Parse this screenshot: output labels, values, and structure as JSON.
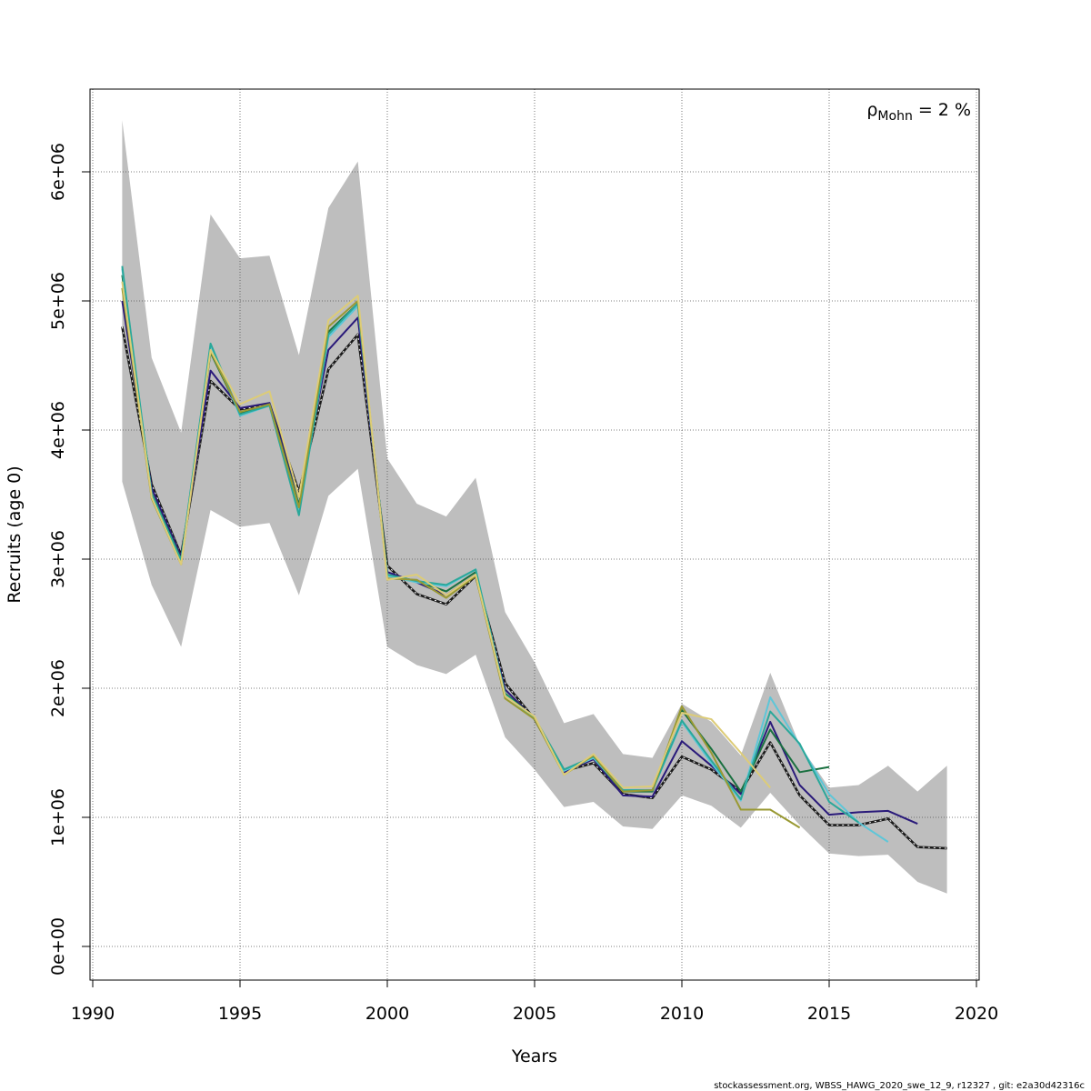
{
  "chart_data": {
    "type": "line",
    "xlabel": "Years",
    "ylabel": "Recruits (age 0)",
    "xlim": [
      1990,
      2020
    ],
    "ylim": [
      -250000,
      6650000
    ],
    "x_ticks": [
      1990,
      1995,
      2000,
      2005,
      2010,
      2015,
      2020
    ],
    "x_tick_labels": [
      "1990",
      "1995",
      "2000",
      "2005",
      "2010",
      "2015",
      "2020"
    ],
    "y_ticks": [
      0,
      1000000,
      2000000,
      3000000,
      4000000,
      5000000,
      6000000
    ],
    "y_tick_labels": [
      "0e+00",
      "1e+06",
      "2e+06",
      "3e+06",
      "4e+06",
      "5e+06",
      "6e+06"
    ],
    "grid": true,
    "annotation": {
      "rho": "ρ",
      "sub": "Mohn",
      "rest": " = 2 %"
    },
    "footer": "stockassessment.org, WBSS_HAWG_2020_swe_12_9, r12327 , git: e2a30d42316c",
    "band": {
      "color": "#bebebe",
      "x": [
        1991,
        1992,
        1993,
        1994,
        1995,
        1996,
        1997,
        1998,
        1999,
        2000,
        2001,
        2002,
        2003,
        2004,
        2005,
        2006,
        2007,
        2008,
        2009,
        2010,
        2011,
        2012,
        2013,
        2014,
        2015,
        2016,
        2017,
        2018,
        2019
      ],
      "lower": [
        3600000,
        2800000,
        2320000,
        3380000,
        3250000,
        3280000,
        2720000,
        3490000,
        3700000,
        2320000,
        2180000,
        2110000,
        2260000,
        1620000,
        1370000,
        1080000,
        1120000,
        930000,
        910000,
        1170000,
        1090000,
        920000,
        1190000,
        940000,
        720000,
        700000,
        710000,
        500000,
        410000
      ],
      "upper": [
        6400000,
        4560000,
        3980000,
        5670000,
        5330000,
        5350000,
        4580000,
        5720000,
        6080000,
        3780000,
        3430000,
        3330000,
        3630000,
        2590000,
        2200000,
        1730000,
        1800000,
        1490000,
        1460000,
        1880000,
        1740000,
        1480000,
        2120000,
        1560000,
        1230000,
        1250000,
        1400000,
        1200000,
        1400000
      ]
    },
    "series": [
      {
        "color": "#1a1a1a",
        "dashed": true,
        "x": [
          1991,
          1992,
          1993,
          1994,
          1995,
          1996,
          1997,
          1998,
          1999,
          2000,
          2001,
          2002,
          2003,
          2004,
          2005,
          2006,
          2007,
          2008,
          2009,
          2010,
          2011,
          2012,
          2013,
          2014,
          2015,
          2016,
          2017,
          2018,
          2019
        ],
        "y": [
          4800000,
          3580000,
          3030000,
          4380000,
          4160000,
          4200000,
          3520000,
          4470000,
          4740000,
          2950000,
          2730000,
          2650000,
          2870000,
          2040000,
          1760000,
          1360000,
          1420000,
          1180000,
          1150000,
          1470000,
          1370000,
          1200000,
          1580000,
          1170000,
          940000,
          940000,
          990000,
          770000,
          760000
        ]
      },
      {
        "color": "#2a1a7a",
        "dashed": false,
        "x": [
          1991,
          1992,
          1993,
          1994,
          1995,
          1996,
          1997,
          1998,
          1999,
          2000,
          2001,
          2002,
          2003,
          2004,
          2005,
          2006,
          2007,
          2008,
          2009,
          2010,
          2011,
          2012,
          2013,
          2014,
          2015,
          2016,
          2017,
          2018
        ],
        "y": [
          5000000,
          3550000,
          3020000,
          4460000,
          4170000,
          4210000,
          3480000,
          4620000,
          4870000,
          2900000,
          2820000,
          2720000,
          2880000,
          1990000,
          1760000,
          1350000,
          1450000,
          1170000,
          1160000,
          1590000,
          1400000,
          1180000,
          1740000,
          1250000,
          1020000,
          1040000,
          1050000,
          950000
        ]
      },
      {
        "color": "#1a7040",
        "dashed": false,
        "x": [
          1991,
          1992,
          1993,
          1994,
          1995,
          1996,
          1997,
          1998,
          1999,
          2000,
          2001,
          2002,
          2003,
          2004,
          2005,
          2006,
          2007,
          2008,
          2009,
          2010,
          2011,
          2012,
          2013,
          2014,
          2015
        ],
        "y": [
          5200000,
          3510000,
          3000000,
          4600000,
          4130000,
          4200000,
          3420000,
          4760000,
          4980000,
          2880000,
          2830000,
          2750000,
          2900000,
          1960000,
          1770000,
          1370000,
          1460000,
          1200000,
          1200000,
          1830000,
          1530000,
          1200000,
          1680000,
          1350000,
          1390000
        ]
      },
      {
        "color": "#5ec6d8",
        "dashed": false,
        "x": [
          1991,
          1992,
          1993,
          1994,
          1995,
          1996,
          1997,
          1998,
          1999,
          2000,
          2001,
          2002,
          2003,
          2004,
          2005,
          2006,
          2007,
          2008,
          2009,
          2010,
          2011,
          2012,
          2013,
          2014,
          2015,
          2016,
          2017
        ],
        "y": [
          5250000,
          3500000,
          2990000,
          4660000,
          4110000,
          4190000,
          3360000,
          4720000,
          4960000,
          2870000,
          2820000,
          2790000,
          2920000,
          1950000,
          1760000,
          1360000,
          1460000,
          1210000,
          1210000,
          1740000,
          1420000,
          1130000,
          1930000,
          1560000,
          1180000,
          960000,
          810000
        ]
      },
      {
        "color": "#2aa89a",
        "dashed": false,
        "x": [
          1991,
          1992,
          1993,
          1994,
          1995,
          1996,
          1997,
          1998,
          1999,
          2000,
          2001,
          2002,
          2003,
          2004,
          2005,
          2006,
          2007,
          2008,
          2009,
          2010,
          2011,
          2012,
          2013,
          2014,
          2015,
          2016
        ],
        "y": [
          5270000,
          3500000,
          2990000,
          4670000,
          4120000,
          4190000,
          3340000,
          4740000,
          4980000,
          2880000,
          2830000,
          2800000,
          2920000,
          1950000,
          1770000,
          1370000,
          1470000,
          1210000,
          1210000,
          1750000,
          1440000,
          1140000,
          1820000,
          1570000,
          1120000,
          960000
        ]
      },
      {
        "color": "#999933",
        "dashed": false,
        "x": [
          1991,
          1992,
          1993,
          1994,
          1995,
          1996,
          1997,
          1998,
          1999,
          2000,
          2001,
          2002,
          2003,
          2004,
          2005,
          2006,
          2007,
          2008,
          2009,
          2010,
          2011,
          2012,
          2013,
          2014
        ],
        "y": [
          5100000,
          3470000,
          2960000,
          4610000,
          4140000,
          4200000,
          3400000,
          4800000,
          5000000,
          2850000,
          2840000,
          2700000,
          2870000,
          1920000,
          1760000,
          1330000,
          1480000,
          1200000,
          1210000,
          1860000,
          1500000,
          1060000,
          1060000,
          920000
        ]
      },
      {
        "color": "#ddcc77",
        "dashed": false,
        "x": [
          1991,
          1992,
          1993,
          1994,
          1995,
          1996,
          1997,
          1998,
          1999,
          2000,
          2001,
          2002,
          2003,
          2004,
          2005,
          2006,
          2007,
          2008,
          2009,
          2010,
          2011,
          2012,
          2013
        ],
        "y": [
          5150000,
          3480000,
          2960000,
          4620000,
          4200000,
          4300000,
          3480000,
          4850000,
          5040000,
          2840000,
          2880000,
          2720000,
          2880000,
          1940000,
          1780000,
          1330000,
          1490000,
          1230000,
          1240000,
          1810000,
          1760000,
          1500000,
          1230000
        ]
      }
    ]
  }
}
